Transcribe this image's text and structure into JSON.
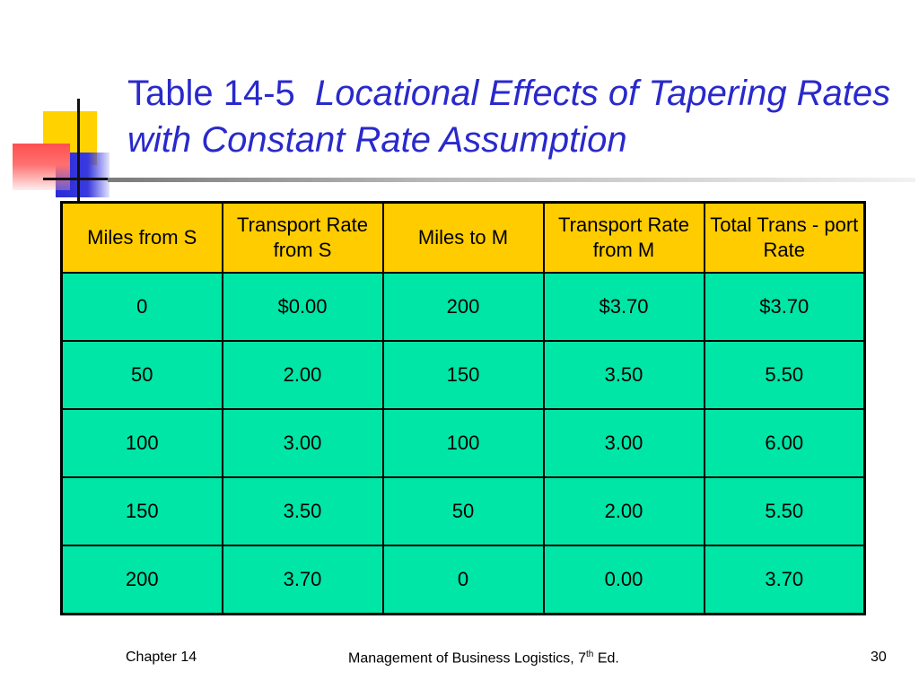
{
  "title": {
    "number": "Table 14-5",
    "subtitle": "Locational Effects of Tapering Rates with Constant Rate Assumption"
  },
  "table": {
    "headers": [
      "Miles from S",
      "Transport Rate from S",
      "Miles to M",
      "Transport Rate from M",
      "Total Trans - port Rate"
    ],
    "rows": [
      [
        "0",
        "$0.00",
        "200",
        "$3.70",
        "$3.70"
      ],
      [
        "50",
        "2.00",
        "150",
        "3.50",
        "5.50"
      ],
      [
        "100",
        "3.00",
        "100",
        "3.00",
        "6.00"
      ],
      [
        "150",
        "3.50",
        "50",
        "2.00",
        "5.50"
      ],
      [
        "200",
        "3.70",
        "0",
        "0.00",
        "3.70"
      ]
    ]
  },
  "footer": {
    "left": "Chapter 14",
    "center_text": "Management of Business Logistics, 7",
    "center_sup": "th",
    "center_end": " Ed.",
    "page_number": "30"
  },
  "colors": {
    "title": "#2929cc",
    "header_bg": "#ffcc00",
    "cell_bg": "#00e6a6"
  }
}
